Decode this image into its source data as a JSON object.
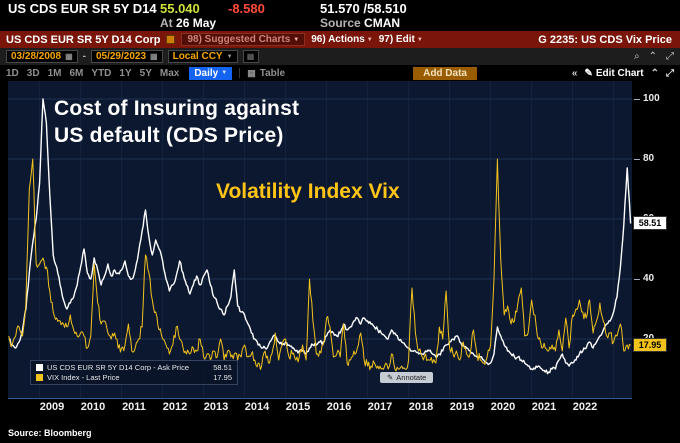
{
  "colors": {
    "cds_line": "#ffffff",
    "vix_line": "#f3c31c",
    "chart_background": "#0b1830",
    "function_bar_red": "#7a150a",
    "accent_blue": "#1464f4",
    "amber": "#f7a600",
    "price_up_green": "#cde23a",
    "price_down_red": "#ff4a3c"
  },
  "icons": {
    "dropdown": "▼",
    "calendar": "▦",
    "search": "⌕",
    "caret_up": "⌃",
    "expand": "⤢",
    "collapse_left": "«",
    "pencil": "✎",
    "annotate_pencil": "✎",
    "table_grid": "▦"
  },
  "topbar": {
    "ticker": "US CDS EUR SR 5Y D14",
    "last": "55.040",
    "change": "-8.580",
    "bid_ask": "51.570 /58.510",
    "at_label": "At",
    "at_time": "26 May",
    "source_label": "Source",
    "source_value": "CMAN"
  },
  "titlebar": {
    "security": "US CDS EUR SR 5Y D14 Corp",
    "suggested": "98) Suggested Charts",
    "actions": "96) Actions",
    "edit": "97) Edit",
    "function_label": "G 2235: US CDS Vix Price"
  },
  "toolbar": {
    "date_from": "03/28/2008",
    "date_separator": "-",
    "date_to": "05/29/2023",
    "currency": "Local CCY",
    "edit_chart": "Edit Chart"
  },
  "periodbar": {
    "periods": [
      "1D",
      "3D",
      "1M",
      "6M",
      "YTD",
      "1Y",
      "5Y",
      "Max"
    ],
    "frequency": "Daily",
    "table": "Table",
    "add_data": "Add Data"
  },
  "chart": {
    "title_line1": "Cost of Insuring against",
    "title_line2": "US default (CDS Price)",
    "vix_label": "Volatility Index Vix",
    "annotate": "Annotate",
    "source": "Source: Bloomberg",
    "badge_cds": "58.51",
    "badge_vix": "17.95",
    "legend": [
      {
        "label": "US CDS EUR SR 5Y D14 Corp - Ask Price",
        "value": "58.51",
        "color": "#ffffff"
      },
      {
        "label": "VIX Index - Last Price",
        "value": "17.95",
        "color": "#f3c31c"
      }
    ]
  },
  "chart_data": {
    "type": "line",
    "x_range": [
      2008.23,
      2023.45
    ],
    "x_start": 2008.25,
    "x_step": 0.0833333,
    "ylim": [
      0,
      106
    ],
    "yticks": [
      20,
      40,
      60,
      80,
      100
    ],
    "grid": true,
    "legend_position": "bottom-left",
    "x_year_labels": [
      "2009",
      "2010",
      "2011",
      "2012",
      "2013",
      "2014",
      "2015",
      "2016",
      "2017",
      "2018",
      "2019",
      "2020",
      "2021",
      "2022"
    ],
    "series": [
      {
        "id": "cds",
        "name": "US CDS EUR SR 5Y D14 Corp - Ask Price",
        "color": "#ffffff",
        "stroke_width": 1.4,
        "noise": 0.7,
        "last": 58.51,
        "values": [
          20,
          18,
          17,
          19,
          23,
          30,
          42,
          52,
          60,
          72,
          100,
          92,
          68,
          48,
          44,
          38,
          33,
          30,
          32,
          34,
          38,
          44,
          50,
          42,
          40,
          47,
          43,
          38,
          41,
          45,
          41,
          43,
          42,
          43,
          46,
          41,
          40,
          43,
          49,
          56,
          63,
          54,
          48,
          53,
          50,
          46,
          40,
          36,
          38,
          41,
          46,
          42,
          38,
          35,
          38,
          41,
          38,
          41,
          43,
          38,
          34,
          32,
          30,
          28,
          31,
          34,
          43,
          31,
          29,
          28,
          25,
          22,
          20,
          18,
          17,
          17,
          18,
          20,
          21,
          19,
          18,
          19,
          18,
          17,
          16,
          16,
          16,
          15,
          17,
          18,
          18,
          19,
          19,
          21,
          23,
          22,
          21,
          22,
          25,
          23,
          24,
          26,
          27,
          25,
          27,
          26,
          25,
          24,
          23,
          22,
          21,
          20,
          23,
          22,
          20,
          19,
          18,
          17,
          16,
          16,
          15,
          15,
          16,
          16,
          15,
          14,
          15,
          16,
          18,
          19,
          20,
          21,
          19,
          18,
          17,
          16,
          15,
          14,
          14,
          13,
          12,
          12,
          15,
          24,
          21,
          18,
          16,
          15,
          14,
          14,
          13,
          12,
          11,
          10,
          10,
          11,
          10,
          9,
          9,
          10,
          10,
          13,
          15,
          12,
          11,
          12,
          13,
          15,
          16,
          17,
          19,
          17,
          19,
          21,
          23,
          25,
          26,
          29,
          34,
          44,
          58,
          77,
          58.51
        ]
      },
      {
        "id": "vix",
        "name": "VIX Index - Last Price",
        "color": "#f3c31c",
        "stroke_width": 1,
        "noise": 1.6,
        "last": 17.95,
        "values": [
          21,
          18,
          21,
          24,
          21,
          32,
          70,
          80,
          45,
          45,
          47,
          44,
          36,
          29,
          27,
          26,
          25,
          24,
          28,
          23,
          21,
          22,
          21,
          17,
          21,
          45,
          32,
          25,
          26,
          22,
          20,
          22,
          17,
          17,
          18,
          25,
          16,
          17,
          20,
          24,
          48,
          42,
          33,
          29,
          23,
          20,
          18,
          15,
          18,
          24,
          20,
          17,
          15,
          15,
          17,
          16,
          20,
          14,
          15,
          13,
          16,
          14,
          20,
          13,
          16,
          14,
          15,
          13,
          14,
          18,
          14,
          15,
          13,
          12,
          11,
          16,
          12,
          15,
          22,
          13,
          18,
          20,
          14,
          15,
          13,
          14,
          18,
          13,
          40,
          26,
          15,
          16,
          18,
          27,
          24,
          14,
          15,
          14,
          25,
          12,
          13,
          16,
          17,
          22,
          13,
          11,
          11,
          12,
          11,
          10,
          11,
          10,
          15,
          10,
          10,
          11,
          10,
          13,
          37,
          22,
          16,
          14,
          15,
          13,
          12,
          12,
          24,
          20,
          36,
          17,
          15,
          16,
          13,
          19,
          15,
          15,
          23,
          15,
          13,
          12,
          14,
          18,
          40,
          80,
          46,
          28,
          31,
          25,
          26,
          32,
          37,
          21,
          22,
          33,
          28,
          20,
          17,
          17,
          16,
          18,
          16,
          23,
          16,
          27,
          17,
          28,
          30,
          33,
          29,
          27,
          33,
          22,
          26,
          32,
          26,
          21,
          22,
          19,
          21,
          25,
          16,
          18,
          17.95
        ]
      }
    ]
  }
}
